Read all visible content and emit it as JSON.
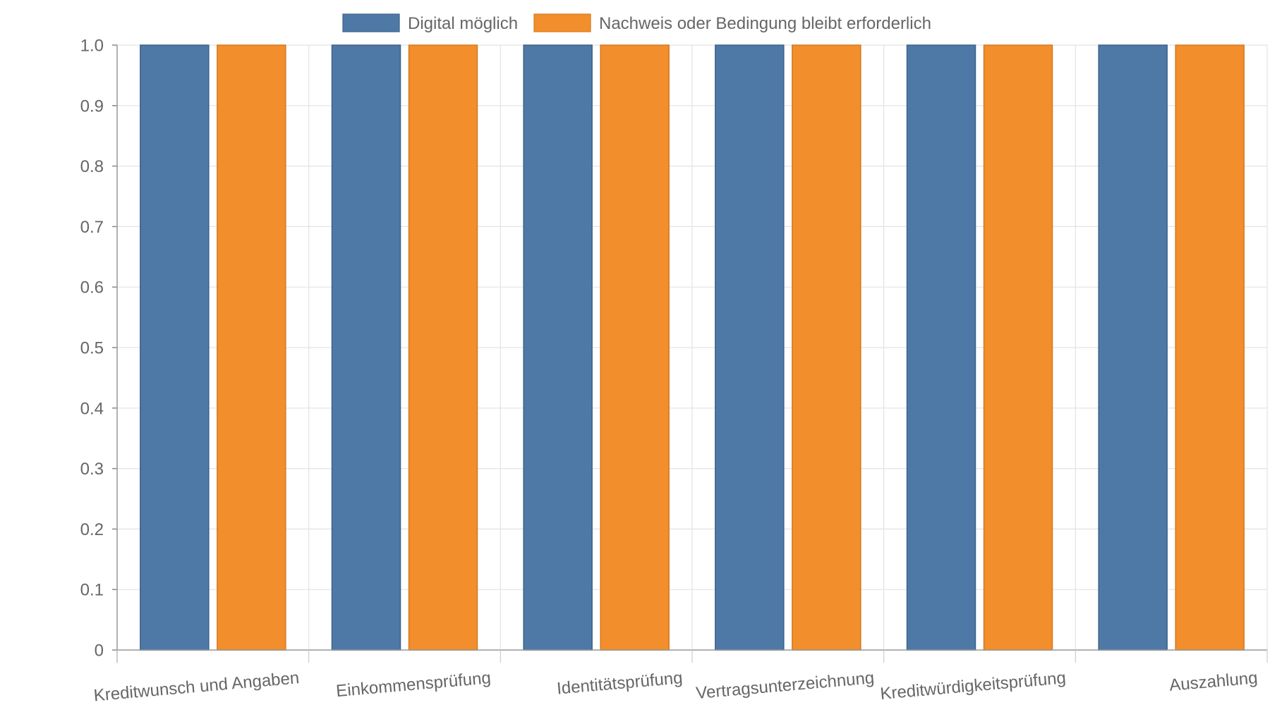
{
  "chart_data": {
    "type": "bar",
    "title": "",
    "xlabel": "",
    "ylabel": "",
    "categories": [
      "Kreditwunsch und Angaben",
      "Einkommensprüfung",
      "Identitätsprüfung",
      "Vertragsunterzeichnung",
      "Kreditwürdigkeitsprüfung",
      "Auszahlung"
    ],
    "series": [
      {
        "name": "Digital möglich",
        "color": "#4e79a7",
        "values": [
          1,
          1,
          1,
          1,
          1,
          1
        ]
      },
      {
        "name": "Nachweis oder Bedingung bleibt erforderlich",
        "color": "#f28e2b",
        "values": [
          1,
          1,
          1,
          1,
          1,
          1
        ]
      }
    ],
    "ylim": [
      0,
      1
    ],
    "yticks": [
      "0",
      "0.1",
      "0.2",
      "0.3",
      "0.4",
      "0.5",
      "0.6",
      "0.7",
      "0.8",
      "0.9",
      "1.0"
    ],
    "grid": true,
    "legend_position": "top-center"
  }
}
